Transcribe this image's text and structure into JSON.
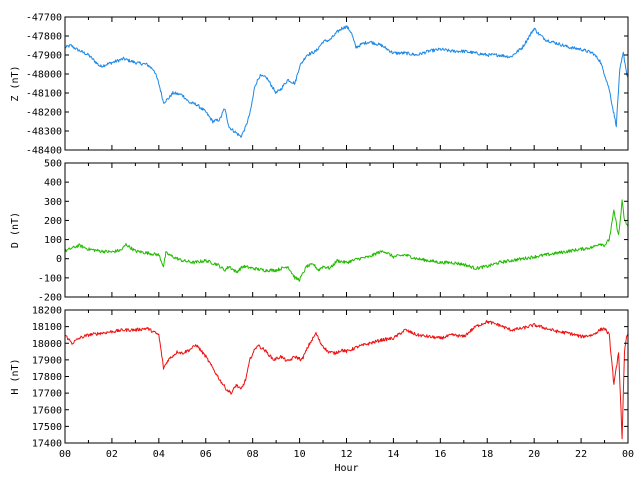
{
  "chart_data": [
    {
      "type": "line",
      "ylabel": "Z (nT)",
      "ylim": [
        -48400,
        -47700
      ],
      "yticks": [
        -47700,
        -47800,
        -47900,
        -48000,
        -48100,
        -48200,
        -48300,
        -48400
      ],
      "xlim": [
        0,
        24
      ],
      "color": "#1e88e5",
      "series": [
        {
          "x": [
            0,
            0.25,
            0.5,
            1,
            1.5,
            2,
            2.5,
            3,
            3.5,
            3.8,
            4,
            4.2,
            4.4,
            4.6,
            5,
            5.3,
            5.6,
            6,
            6.3,
            6.6,
            6.8,
            7,
            7.2,
            7.5,
            7.7,
            7.9,
            8.1,
            8.3,
            8.6,
            9,
            9.2,
            9.5,
            9.8,
            10,
            10.3,
            10.7,
            11,
            11.3,
            11.6,
            11.8,
            12,
            12.2,
            12.4,
            12.7,
            13,
            13.5,
            14,
            14.5,
            15,
            15.5,
            16,
            16.5,
            17,
            17.5,
            18,
            18.5,
            19,
            19.5,
            19.8,
            20,
            20.2,
            20.5,
            21,
            21.5,
            22,
            22.5,
            22.8,
            23,
            23.2,
            23.35,
            23.5,
            23.65,
            23.8,
            23.95,
            24
          ],
          "y": [
            -47860,
            -47850,
            -47870,
            -47900,
            -47960,
            -47940,
            -47920,
            -47940,
            -47950,
            -47980,
            -48050,
            -48150,
            -48130,
            -48100,
            -48110,
            -48150,
            -48160,
            -48200,
            -48250,
            -48240,
            -48180,
            -48280,
            -48300,
            -48330,
            -48280,
            -48200,
            -48060,
            -48010,
            -48020,
            -48100,
            -48080,
            -48030,
            -48050,
            -47960,
            -47900,
            -47880,
            -47830,
            -47820,
            -47780,
            -47760,
            -47750,
            -47780,
            -47860,
            -47840,
            -47830,
            -47850,
            -47890,
            -47890,
            -47900,
            -47880,
            -47870,
            -47880,
            -47880,
            -47890,
            -47900,
            -47900,
            -47910,
            -47860,
            -47800,
            -47760,
            -47790,
            -47820,
            -47840,
            -47860,
            -47870,
            -47890,
            -47930,
            -48000,
            -48080,
            -48180,
            -48270,
            -47980,
            -47890,
            -48000,
            -48020
          ]
        }
      ]
    },
    {
      "type": "line",
      "ylabel": "D (nT)",
      "ylim": [
        -200,
        500
      ],
      "yticks": [
        500,
        400,
        300,
        200,
        100,
        0,
        -100,
        -200
      ],
      "xlim": [
        0,
        24
      ],
      "color": "#22bb00",
      "series": [
        {
          "x": [
            0,
            0.3,
            0.6,
            1,
            1.5,
            2,
            2.4,
            2.6,
            3,
            3.5,
            4,
            4.2,
            4.3,
            4.6,
            5,
            5.5,
            6,
            6.5,
            6.8,
            7,
            7.3,
            7.6,
            8,
            8.5,
            9,
            9.5,
            9.8,
            10,
            10.3,
            10.6,
            10.8,
            11,
            11.3,
            11.6,
            12,
            12.5,
            13,
            13.3,
            13.6,
            14,
            14.5,
            15,
            15.5,
            16,
            16.5,
            17,
            17.5,
            18,
            18.5,
            19,
            19.5,
            20,
            20.5,
            21,
            21.5,
            22,
            22.5,
            22.8,
            23,
            23.2,
            23.4,
            23.6,
            23.75,
            23.85,
            24
          ],
          "y": [
            40,
            55,
            70,
            50,
            40,
            35,
            45,
            75,
            40,
            30,
            20,
            -40,
            30,
            10,
            -10,
            -20,
            -10,
            -30,
            -60,
            -40,
            -70,
            -40,
            -50,
            -60,
            -60,
            -40,
            -100,
            -110,
            -40,
            -30,
            -60,
            -40,
            -50,
            -10,
            -20,
            0,
            10,
            30,
            40,
            10,
            20,
            0,
            -10,
            -20,
            -20,
            -30,
            -50,
            -40,
            -20,
            -10,
            0,
            10,
            20,
            30,
            40,
            50,
            60,
            80,
            70,
            100,
            250,
            120,
            300,
            200,
            170
          ]
        }
      ]
    },
    {
      "type": "line",
      "ylabel": "H (nT)",
      "ylim": [
        17400,
        18200
      ],
      "yticks": [
        18200,
        18100,
        18000,
        17900,
        17800,
        17700,
        17600,
        17500,
        17400
      ],
      "xlim": [
        0,
        24
      ],
      "color": "#ee1111",
      "xlabel": "Hour",
      "xtick_labels": [
        "00",
        "02",
        "04",
        "06",
        "08",
        "10",
        "12",
        "14",
        "16",
        "18",
        "20",
        "22",
        "00"
      ],
      "series": [
        {
          "x": [
            0,
            0.3,
            0.6,
            1,
            1.5,
            2,
            2.5,
            3,
            3.5,
            4,
            4.2,
            4.4,
            4.8,
            5,
            5.3,
            5.6,
            6,
            6.3,
            6.6,
            6.9,
            7.1,
            7.3,
            7.5,
            7.7,
            7.9,
            8.2,
            8.5,
            8.9,
            9.2,
            9.5,
            9.8,
            10.1,
            10.4,
            10.7,
            10.9,
            11.2,
            11.5,
            11.8,
            12,
            12.5,
            13,
            13.5,
            14,
            14.5,
            15,
            15.5,
            16,
            16.5,
            17,
            17.5,
            18,
            18.5,
            19,
            19.5,
            20,
            20.5,
            21,
            21.5,
            22,
            22.5,
            22.8,
            23,
            23.2,
            23.4,
            23.6,
            23.75,
            23.85,
            23.95,
            24
          ],
          "y": [
            18050,
            18000,
            18030,
            18050,
            18060,
            18070,
            18080,
            18080,
            18090,
            18050,
            17850,
            17900,
            17950,
            17940,
            17960,
            17990,
            17920,
            17850,
            17780,
            17720,
            17700,
            17750,
            17720,
            17780,
            17910,
            17990,
            17960,
            17900,
            17920,
            17890,
            17920,
            17900,
            17990,
            18060,
            18000,
            17950,
            17940,
            17960,
            17950,
            17980,
            18000,
            18020,
            18030,
            18080,
            18050,
            18040,
            18030,
            18050,
            18040,
            18100,
            18130,
            18110,
            18080,
            18090,
            18110,
            18090,
            18070,
            18060,
            18040,
            18050,
            18080,
            18090,
            18050,
            17750,
            17950,
            17420,
            17950,
            18050,
            18060
          ]
        }
      ]
    }
  ]
}
